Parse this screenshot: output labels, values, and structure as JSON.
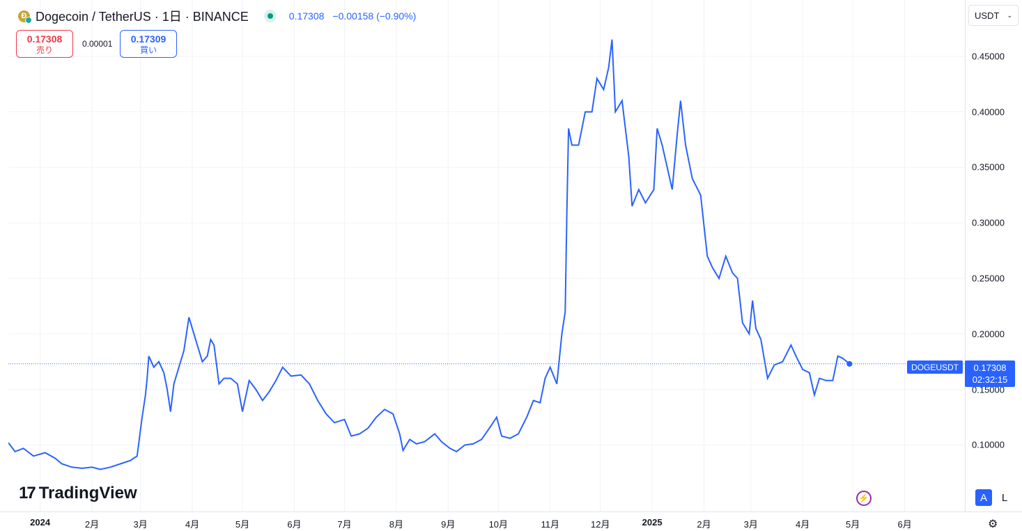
{
  "header": {
    "symbol_title": "Dogecoin / TetherUS · 1日 · BINANCE",
    "coin_icon": "doge-coin-icon",
    "last_price": "0.17308",
    "change": "−0.00158 (−0.90%)"
  },
  "trade": {
    "sell_price": "0.17308",
    "sell_label": "売り",
    "spread": "0.00001",
    "buy_price": "0.17309",
    "buy_label": "買い"
  },
  "currency_select": {
    "value": "USDT"
  },
  "price_marker": {
    "symbol": "DOGEUSDT",
    "price": "0.17308",
    "countdown": "02:32:15"
  },
  "logo": {
    "text": "TradingView"
  },
  "controls": {
    "auto_label": "A",
    "log_label": "L"
  },
  "colors": {
    "line": "#2962ff",
    "accent": "#2962ff",
    "sell": "#f23645",
    "grid": "#f0f3fa"
  },
  "chart_data": {
    "type": "line",
    "title": "Dogecoin / TetherUS · 1日 · BINANCE",
    "xlabel": "",
    "ylabel": "",
    "y_ticks": [
      "0.45000",
      "0.40000",
      "0.35000",
      "0.30000",
      "0.25000",
      "0.20000",
      "0.15000",
      "0.10000"
    ],
    "y_tick_values": [
      0.45,
      0.4,
      0.35,
      0.3,
      0.25,
      0.2,
      0.15,
      0.1
    ],
    "x_ticks": [
      {
        "label": "2024",
        "date": "2024-01-01",
        "bold": true
      },
      {
        "label": "2月",
        "date": "2024-02-01"
      },
      {
        "label": "3月",
        "date": "2024-03-01"
      },
      {
        "label": "4月",
        "date": "2024-04-01"
      },
      {
        "label": "5月",
        "date": "2024-05-01"
      },
      {
        "label": "6月",
        "date": "2024-06-01"
      },
      {
        "label": "7月",
        "date": "2024-07-01"
      },
      {
        "label": "8月",
        "date": "2024-08-01"
      },
      {
        "label": "9月",
        "date": "2024-09-01"
      },
      {
        "label": "10月",
        "date": "2024-10-01"
      },
      {
        "label": "11月",
        "date": "2024-11-01"
      },
      {
        "label": "12月",
        "date": "2024-12-01"
      },
      {
        "label": "2025",
        "date": "2025-01-01",
        "bold": true
      },
      {
        "label": "2月",
        "date": "2025-02-01"
      },
      {
        "label": "3月",
        "date": "2025-03-01"
      },
      {
        "label": "4月",
        "date": "2025-04-01"
      },
      {
        "label": "5月",
        "date": "2025-05-01"
      },
      {
        "label": "6月",
        "date": "2025-06-01"
      }
    ],
    "x_range": [
      "2023-12-13",
      "2025-07-07"
    ],
    "ylim": [
      0.062,
      0.48
    ],
    "grid": true,
    "current_price": 0.17308,
    "series": [
      {
        "values": [
          [
            "2023-12-13",
            0.102
          ],
          [
            "2023-12-17",
            0.094
          ],
          [
            "2023-12-22",
            0.097
          ],
          [
            "2023-12-28",
            0.09
          ],
          [
            "2024-01-04",
            0.093
          ],
          [
            "2024-01-10",
            0.088
          ],
          [
            "2024-01-14",
            0.083
          ],
          [
            "2024-01-20",
            0.08
          ],
          [
            "2024-01-26",
            0.079
          ],
          [
            "2024-02-01",
            0.08
          ],
          [
            "2024-02-06",
            0.078
          ],
          [
            "2024-02-12",
            0.08
          ],
          [
            "2024-02-18",
            0.083
          ],
          [
            "2024-02-24",
            0.086
          ],
          [
            "2024-02-28",
            0.09
          ],
          [
            "2024-03-02",
            0.125
          ],
          [
            "2024-03-04",
            0.145
          ],
          [
            "2024-03-05",
            0.16
          ],
          [
            "2024-03-06",
            0.18
          ],
          [
            "2024-03-09",
            0.17
          ],
          [
            "2024-03-12",
            0.175
          ],
          [
            "2024-03-15",
            0.165
          ],
          [
            "2024-03-17",
            0.15
          ],
          [
            "2024-03-19",
            0.13
          ],
          [
            "2024-03-21",
            0.155
          ],
          [
            "2024-03-24",
            0.17
          ],
          [
            "2024-03-27",
            0.185
          ],
          [
            "2024-03-30",
            0.215
          ],
          [
            "2024-04-02",
            0.2
          ],
          [
            "2024-04-04",
            0.19
          ],
          [
            "2024-04-07",
            0.175
          ],
          [
            "2024-04-10",
            0.18
          ],
          [
            "2024-04-12",
            0.195
          ],
          [
            "2024-04-14",
            0.19
          ],
          [
            "2024-04-17",
            0.155
          ],
          [
            "2024-04-20",
            0.16
          ],
          [
            "2024-04-24",
            0.16
          ],
          [
            "2024-04-28",
            0.155
          ],
          [
            "2024-05-01",
            0.13
          ],
          [
            "2024-05-05",
            0.158
          ],
          [
            "2024-05-09",
            0.15
          ],
          [
            "2024-05-13",
            0.14
          ],
          [
            "2024-05-17",
            0.148
          ],
          [
            "2024-05-21",
            0.158
          ],
          [
            "2024-05-25",
            0.17
          ],
          [
            "2024-05-30",
            0.162
          ],
          [
            "2024-06-05",
            0.163
          ],
          [
            "2024-06-10",
            0.155
          ],
          [
            "2024-06-15",
            0.14
          ],
          [
            "2024-06-20",
            0.128
          ],
          [
            "2024-06-25",
            0.12
          ],
          [
            "2024-07-01",
            0.123
          ],
          [
            "2024-07-05",
            0.108
          ],
          [
            "2024-07-10",
            0.11
          ],
          [
            "2024-07-15",
            0.115
          ],
          [
            "2024-07-20",
            0.125
          ],
          [
            "2024-07-25",
            0.132
          ],
          [
            "2024-07-30",
            0.128
          ],
          [
            "2024-08-03",
            0.11
          ],
          [
            "2024-08-05",
            0.095
          ],
          [
            "2024-08-09",
            0.105
          ],
          [
            "2024-08-13",
            0.101
          ],
          [
            "2024-08-18",
            0.103
          ],
          [
            "2024-08-24",
            0.11
          ],
          [
            "2024-08-28",
            0.103
          ],
          [
            "2024-09-02",
            0.097
          ],
          [
            "2024-09-06",
            0.094
          ],
          [
            "2024-09-11",
            0.1
          ],
          [
            "2024-09-16",
            0.101
          ],
          [
            "2024-09-21",
            0.105
          ],
          [
            "2024-09-27",
            0.118
          ],
          [
            "2024-09-30",
            0.125
          ],
          [
            "2024-10-03",
            0.108
          ],
          [
            "2024-10-08",
            0.106
          ],
          [
            "2024-10-13",
            0.11
          ],
          [
            "2024-10-18",
            0.125
          ],
          [
            "2024-10-22",
            0.14
          ],
          [
            "2024-10-26",
            0.138
          ],
          [
            "2024-10-29",
            0.16
          ],
          [
            "2024-11-01",
            0.17
          ],
          [
            "2024-11-05",
            0.155
          ],
          [
            "2024-11-08",
            0.2
          ],
          [
            "2024-11-10",
            0.22
          ],
          [
            "2024-11-11",
            0.31
          ],
          [
            "2024-11-12",
            0.385
          ],
          [
            "2024-11-14",
            0.37
          ],
          [
            "2024-11-18",
            0.37
          ],
          [
            "2024-11-22",
            0.4
          ],
          [
            "2024-11-26",
            0.4
          ],
          [
            "2024-11-29",
            0.43
          ],
          [
            "2024-12-03",
            0.42
          ],
          [
            "2024-12-06",
            0.44
          ],
          [
            "2024-12-08",
            0.465
          ],
          [
            "2024-12-10",
            0.4
          ],
          [
            "2024-12-14",
            0.41
          ],
          [
            "2024-12-18",
            0.36
          ],
          [
            "2024-12-20",
            0.315
          ],
          [
            "2024-12-24",
            0.33
          ],
          [
            "2024-12-28",
            0.318
          ],
          [
            "2025-01-02",
            0.33
          ],
          [
            "2025-01-04",
            0.385
          ],
          [
            "2025-01-07",
            0.37
          ],
          [
            "2025-01-10",
            0.35
          ],
          [
            "2025-01-13",
            0.33
          ],
          [
            "2025-01-16",
            0.38
          ],
          [
            "2025-01-18",
            0.41
          ],
          [
            "2025-01-21",
            0.37
          ],
          [
            "2025-01-25",
            0.34
          ],
          [
            "2025-01-30",
            0.325
          ],
          [
            "2025-02-03",
            0.27
          ],
          [
            "2025-02-06",
            0.26
          ],
          [
            "2025-02-10",
            0.25
          ],
          [
            "2025-02-14",
            0.27
          ],
          [
            "2025-02-18",
            0.255
          ],
          [
            "2025-02-21",
            0.25
          ],
          [
            "2025-02-24",
            0.21
          ],
          [
            "2025-02-28",
            0.2
          ],
          [
            "2025-03-02",
            0.23
          ],
          [
            "2025-03-04",
            0.205
          ],
          [
            "2025-03-07",
            0.195
          ],
          [
            "2025-03-11",
            0.16
          ],
          [
            "2025-03-15",
            0.172
          ],
          [
            "2025-03-20",
            0.175
          ],
          [
            "2025-03-25",
            0.19
          ],
          [
            "2025-03-28",
            0.18
          ],
          [
            "2025-04-01",
            0.168
          ],
          [
            "2025-04-05",
            0.165
          ],
          [
            "2025-04-08",
            0.145
          ],
          [
            "2025-04-11",
            0.16
          ],
          [
            "2025-04-15",
            0.158
          ],
          [
            "2025-04-19",
            0.158
          ],
          [
            "2025-04-22",
            0.18
          ],
          [
            "2025-04-25",
            0.178
          ],
          [
            "2025-04-29",
            0.173
          ]
        ]
      }
    ]
  }
}
